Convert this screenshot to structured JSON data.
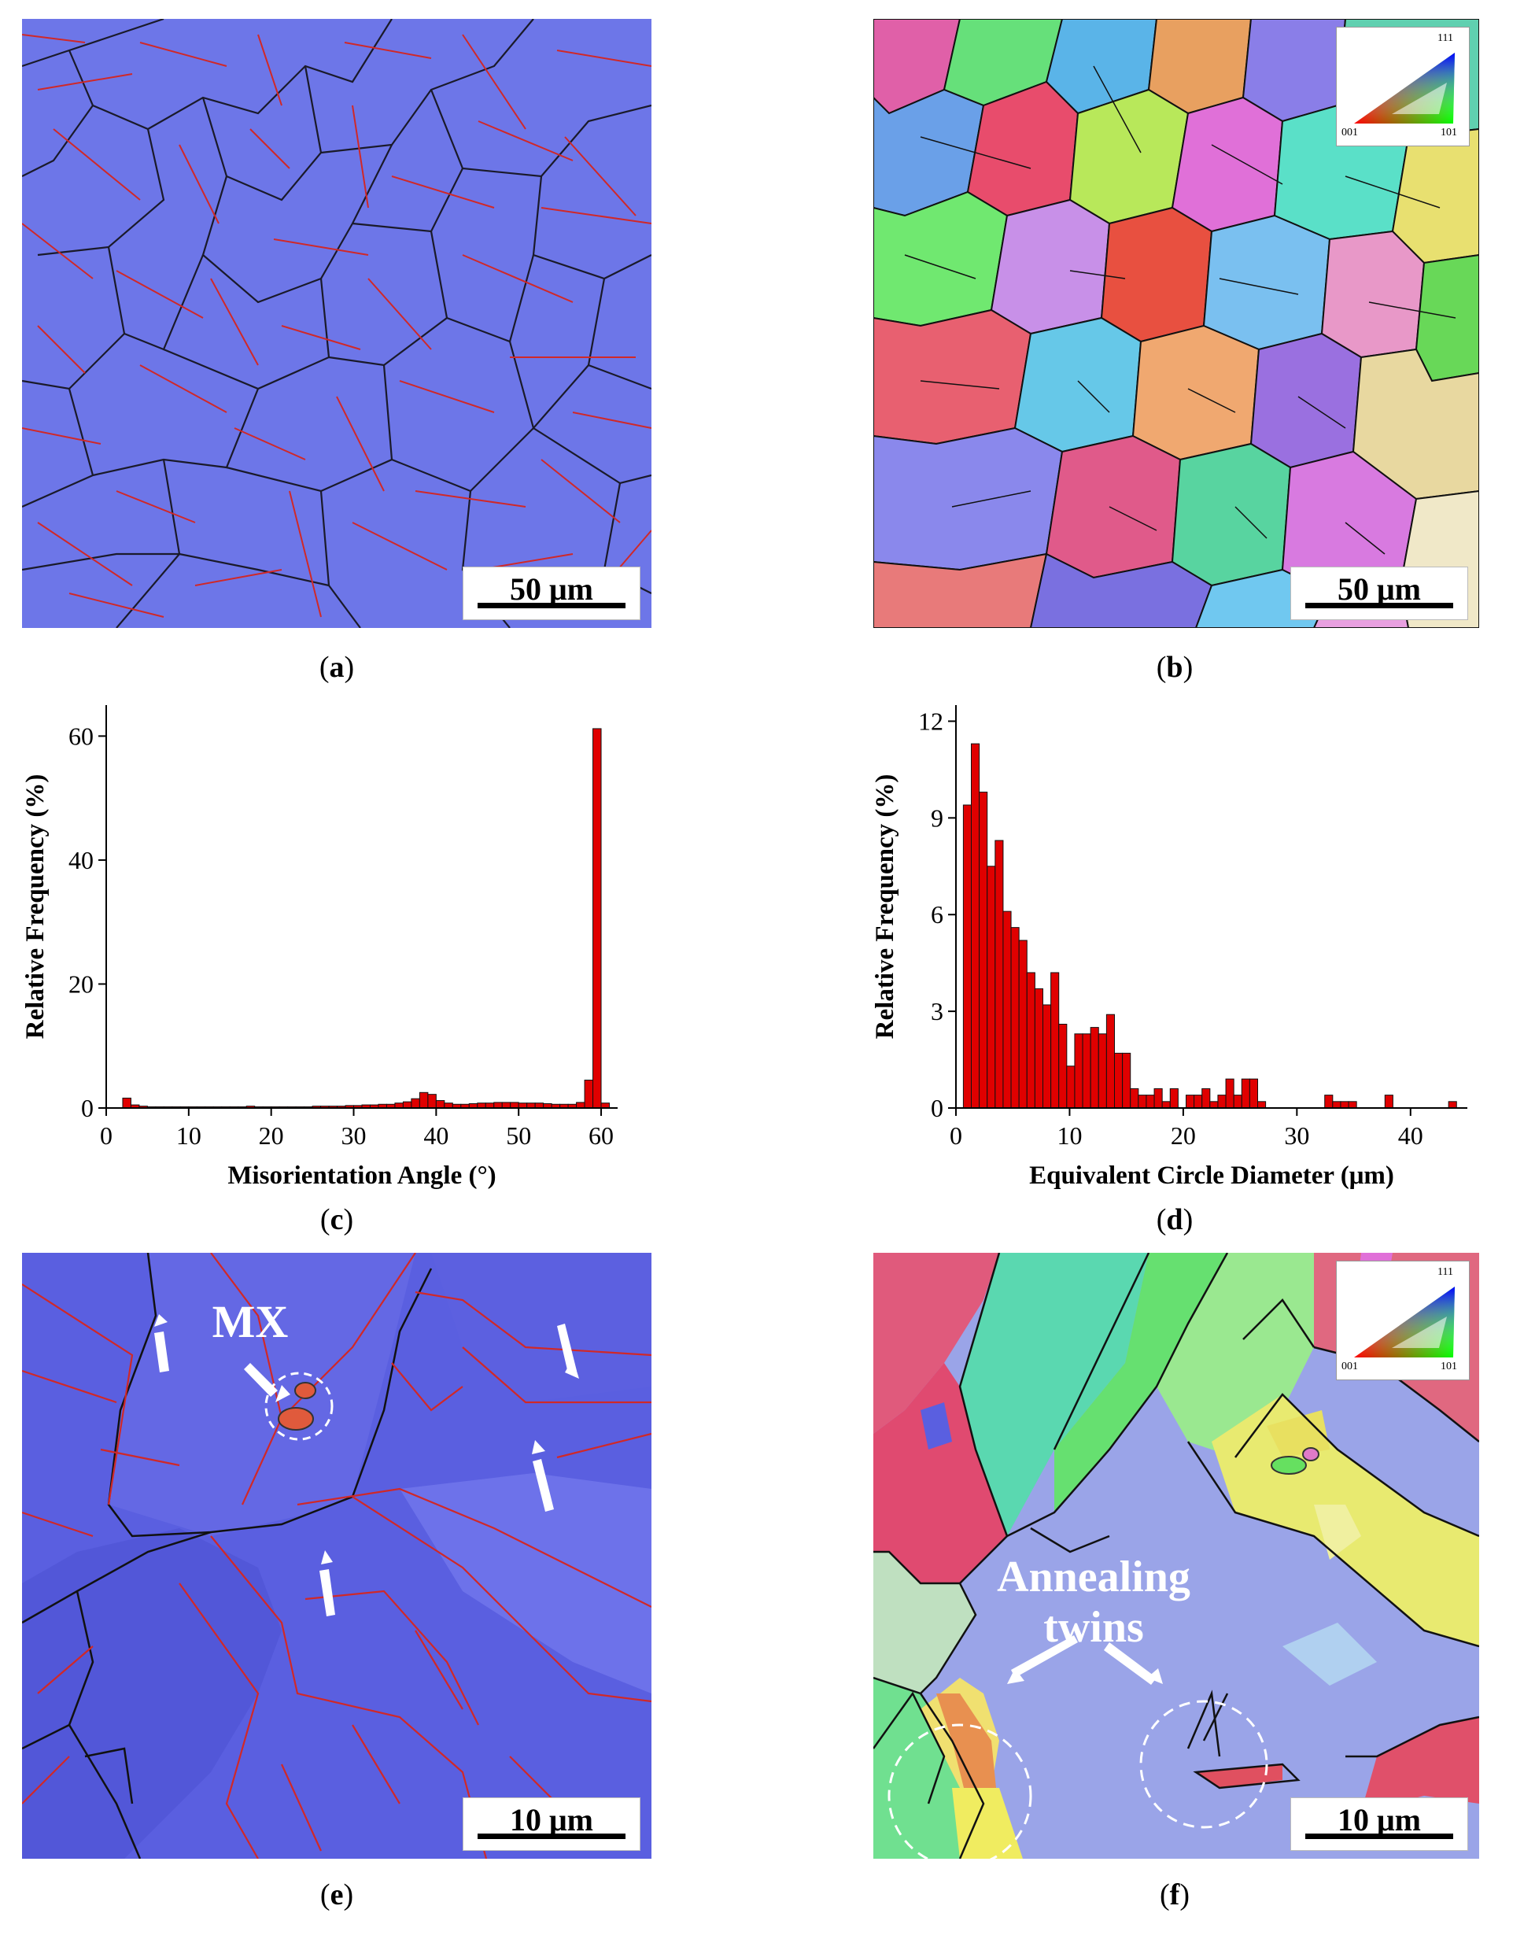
{
  "panels": {
    "a": {
      "caption_prefix": "(",
      "caption_letter": "a",
      "caption_suffix": ")",
      "scale_label": "50 μm",
      "colors": {
        "matrix": "#6670e6",
        "hagb": "#1a1a2a",
        "twin": "#d02828"
      }
    },
    "b": {
      "caption_prefix": "(",
      "caption_letter": "b",
      "caption_suffix": ")",
      "scale_label": "50 μm",
      "ipf_key": {
        "top": "111",
        "left": "001",
        "right": "101"
      }
    },
    "c": {
      "caption_prefix": "(",
      "caption_letter": "c",
      "caption_suffix": ")"
    },
    "d": {
      "caption_prefix": "(",
      "caption_letter": "d",
      "caption_suffix": ")"
    },
    "e": {
      "caption_prefix": "(",
      "caption_letter": "e",
      "caption_suffix": ")",
      "scale_label": "10 μm",
      "label_mx": "MX",
      "colors": {
        "matrix": "#5a5fe0",
        "carbide": "#e05a3c"
      }
    },
    "f": {
      "caption_prefix": "(",
      "caption_letter": "f",
      "caption_suffix": ")",
      "scale_label": "10 μm",
      "label_line1": "Annealing",
      "label_line2": "twins",
      "ipf_key": {
        "top": "111",
        "left": "001",
        "right": "101"
      }
    }
  },
  "chart_data": [
    {
      "type": "bar",
      "panel": "c",
      "xlabel": "Misorientation Angle (°)",
      "ylabel": "Relative Frequency (%)",
      "xlim": [
        0,
        62
      ],
      "ylim": [
        0,
        65
      ],
      "xticks": [
        0,
        10,
        20,
        30,
        40,
        50,
        60
      ],
      "yticks": [
        0,
        20,
        40,
        60
      ],
      "bar_width": 1,
      "bar_color": "#e00000",
      "x": [
        2.5,
        3.5,
        4.5,
        5.5,
        6.5,
        7.5,
        8.5,
        9.5,
        10.5,
        11.5,
        12.5,
        13.5,
        14.5,
        15.5,
        16.5,
        17.5,
        18.5,
        19.5,
        20.5,
        21.5,
        22.5,
        23.5,
        24.5,
        25.5,
        26.5,
        27.5,
        28.5,
        29.5,
        30.5,
        31.5,
        32.5,
        33.5,
        34.5,
        35.5,
        36.5,
        37.5,
        38.5,
        39.5,
        40.5,
        41.5,
        42.5,
        43.5,
        44.5,
        45.5,
        46.5,
        47.5,
        48.5,
        49.5,
        50.5,
        51.5,
        52.5,
        53.5,
        54.5,
        55.5,
        56.5,
        57.5,
        58.5,
        59.5,
        60.5
      ],
      "values": [
        1.6,
        0.5,
        0.3,
        0.2,
        0.2,
        0.2,
        0.2,
        0.2,
        0.2,
        0.2,
        0.2,
        0.2,
        0.2,
        0.2,
        0.2,
        0.3,
        0.2,
        0.2,
        0.2,
        0.2,
        0.2,
        0.2,
        0.2,
        0.3,
        0.3,
        0.3,
        0.3,
        0.4,
        0.4,
        0.5,
        0.5,
        0.6,
        0.6,
        0.8,
        1.0,
        1.5,
        2.5,
        2.2,
        1.2,
        0.8,
        0.6,
        0.6,
        0.7,
        0.8,
        0.8,
        0.9,
        0.9,
        0.9,
        0.8,
        0.8,
        0.8,
        0.7,
        0.6,
        0.6,
        0.6,
        0.9,
        4.5,
        61.2,
        0.8
      ]
    },
    {
      "type": "bar",
      "panel": "d",
      "xlabel": "Equivalent Circle Diameter (μm)",
      "ylabel": "Relative Frequency (%)",
      "xlim": [
        0,
        45
      ],
      "ylim": [
        0,
        12.5
      ],
      "xticks": [
        0,
        10,
        20,
        30,
        40
      ],
      "yticks": [
        0,
        3,
        6,
        9,
        12
      ],
      "bar_width": 0.7,
      "bar_color": "#e00000",
      "x": [
        1.0,
        1.7,
        2.4,
        3.1,
        3.8,
        4.5,
        5.2,
        5.9,
        6.6,
        7.3,
        8.0,
        8.7,
        9.4,
        10.1,
        10.8,
        11.5,
        12.2,
        12.9,
        13.6,
        14.3,
        15.0,
        15.7,
        16.4,
        17.1,
        17.8,
        18.5,
        19.2,
        19.9,
        20.6,
        21.3,
        22.0,
        22.7,
        23.4,
        24.1,
        24.8,
        25.5,
        26.2,
        26.9,
        27.6,
        28.3,
        32.8,
        33.5,
        34.2,
        34.9,
        35.6,
        38.1,
        43.7
      ],
      "values": [
        9.4,
        11.3,
        9.8,
        7.5,
        8.3,
        6.1,
        5.6,
        5.2,
        4.2,
        3.7,
        3.2,
        4.2,
        2.6,
        1.3,
        2.3,
        2.3,
        2.5,
        2.3,
        2.9,
        1.7,
        1.7,
        0.6,
        0.4,
        0.4,
        0.6,
        0.2,
        0.6,
        0.0,
        0.4,
        0.4,
        0.6,
        0.2,
        0.4,
        0.9,
        0.4,
        0.9,
        0.9,
        0.2,
        0.0,
        0.0,
        0.4,
        0.2,
        0.2,
        0.2,
        0.0,
        0.4,
        0.2
      ]
    }
  ]
}
